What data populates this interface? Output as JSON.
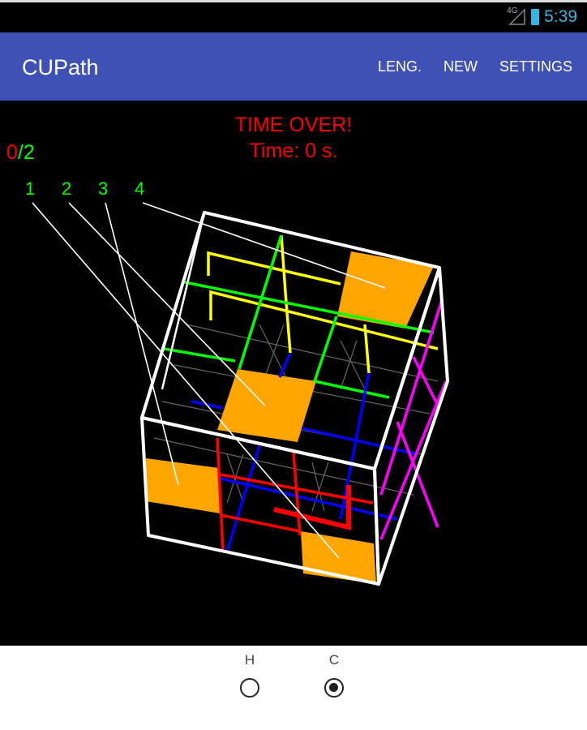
{
  "status_bar": {
    "network": "4G",
    "time": "5:39",
    "icons": [
      "signal-icon",
      "battery-icon"
    ]
  },
  "app_bar": {
    "title": "CUPath",
    "actions": [
      "LENG.",
      "NEW",
      "SETTINGS"
    ],
    "color": "#3f51b5"
  },
  "game": {
    "message": "TIME OVER!",
    "timer": "Time: 0 s.",
    "score_found": "0",
    "score_sep": "/",
    "score_total": "2",
    "target_labels": [
      "1",
      "2",
      "3",
      "4"
    ],
    "colors": {
      "cube": "#ffffff",
      "target": "#ffa500",
      "path_yellow": "#ffff00",
      "path_green": "#00ff00",
      "path_blue": "#0000ff",
      "path_red": "#ff0000",
      "path_magenta": "#ff00ff",
      "text_red": "#ff0000",
      "text_green": "#00ff00"
    }
  },
  "mode": {
    "options": [
      {
        "label": "H",
        "selected": false
      },
      {
        "label": "C",
        "selected": true
      }
    ]
  }
}
